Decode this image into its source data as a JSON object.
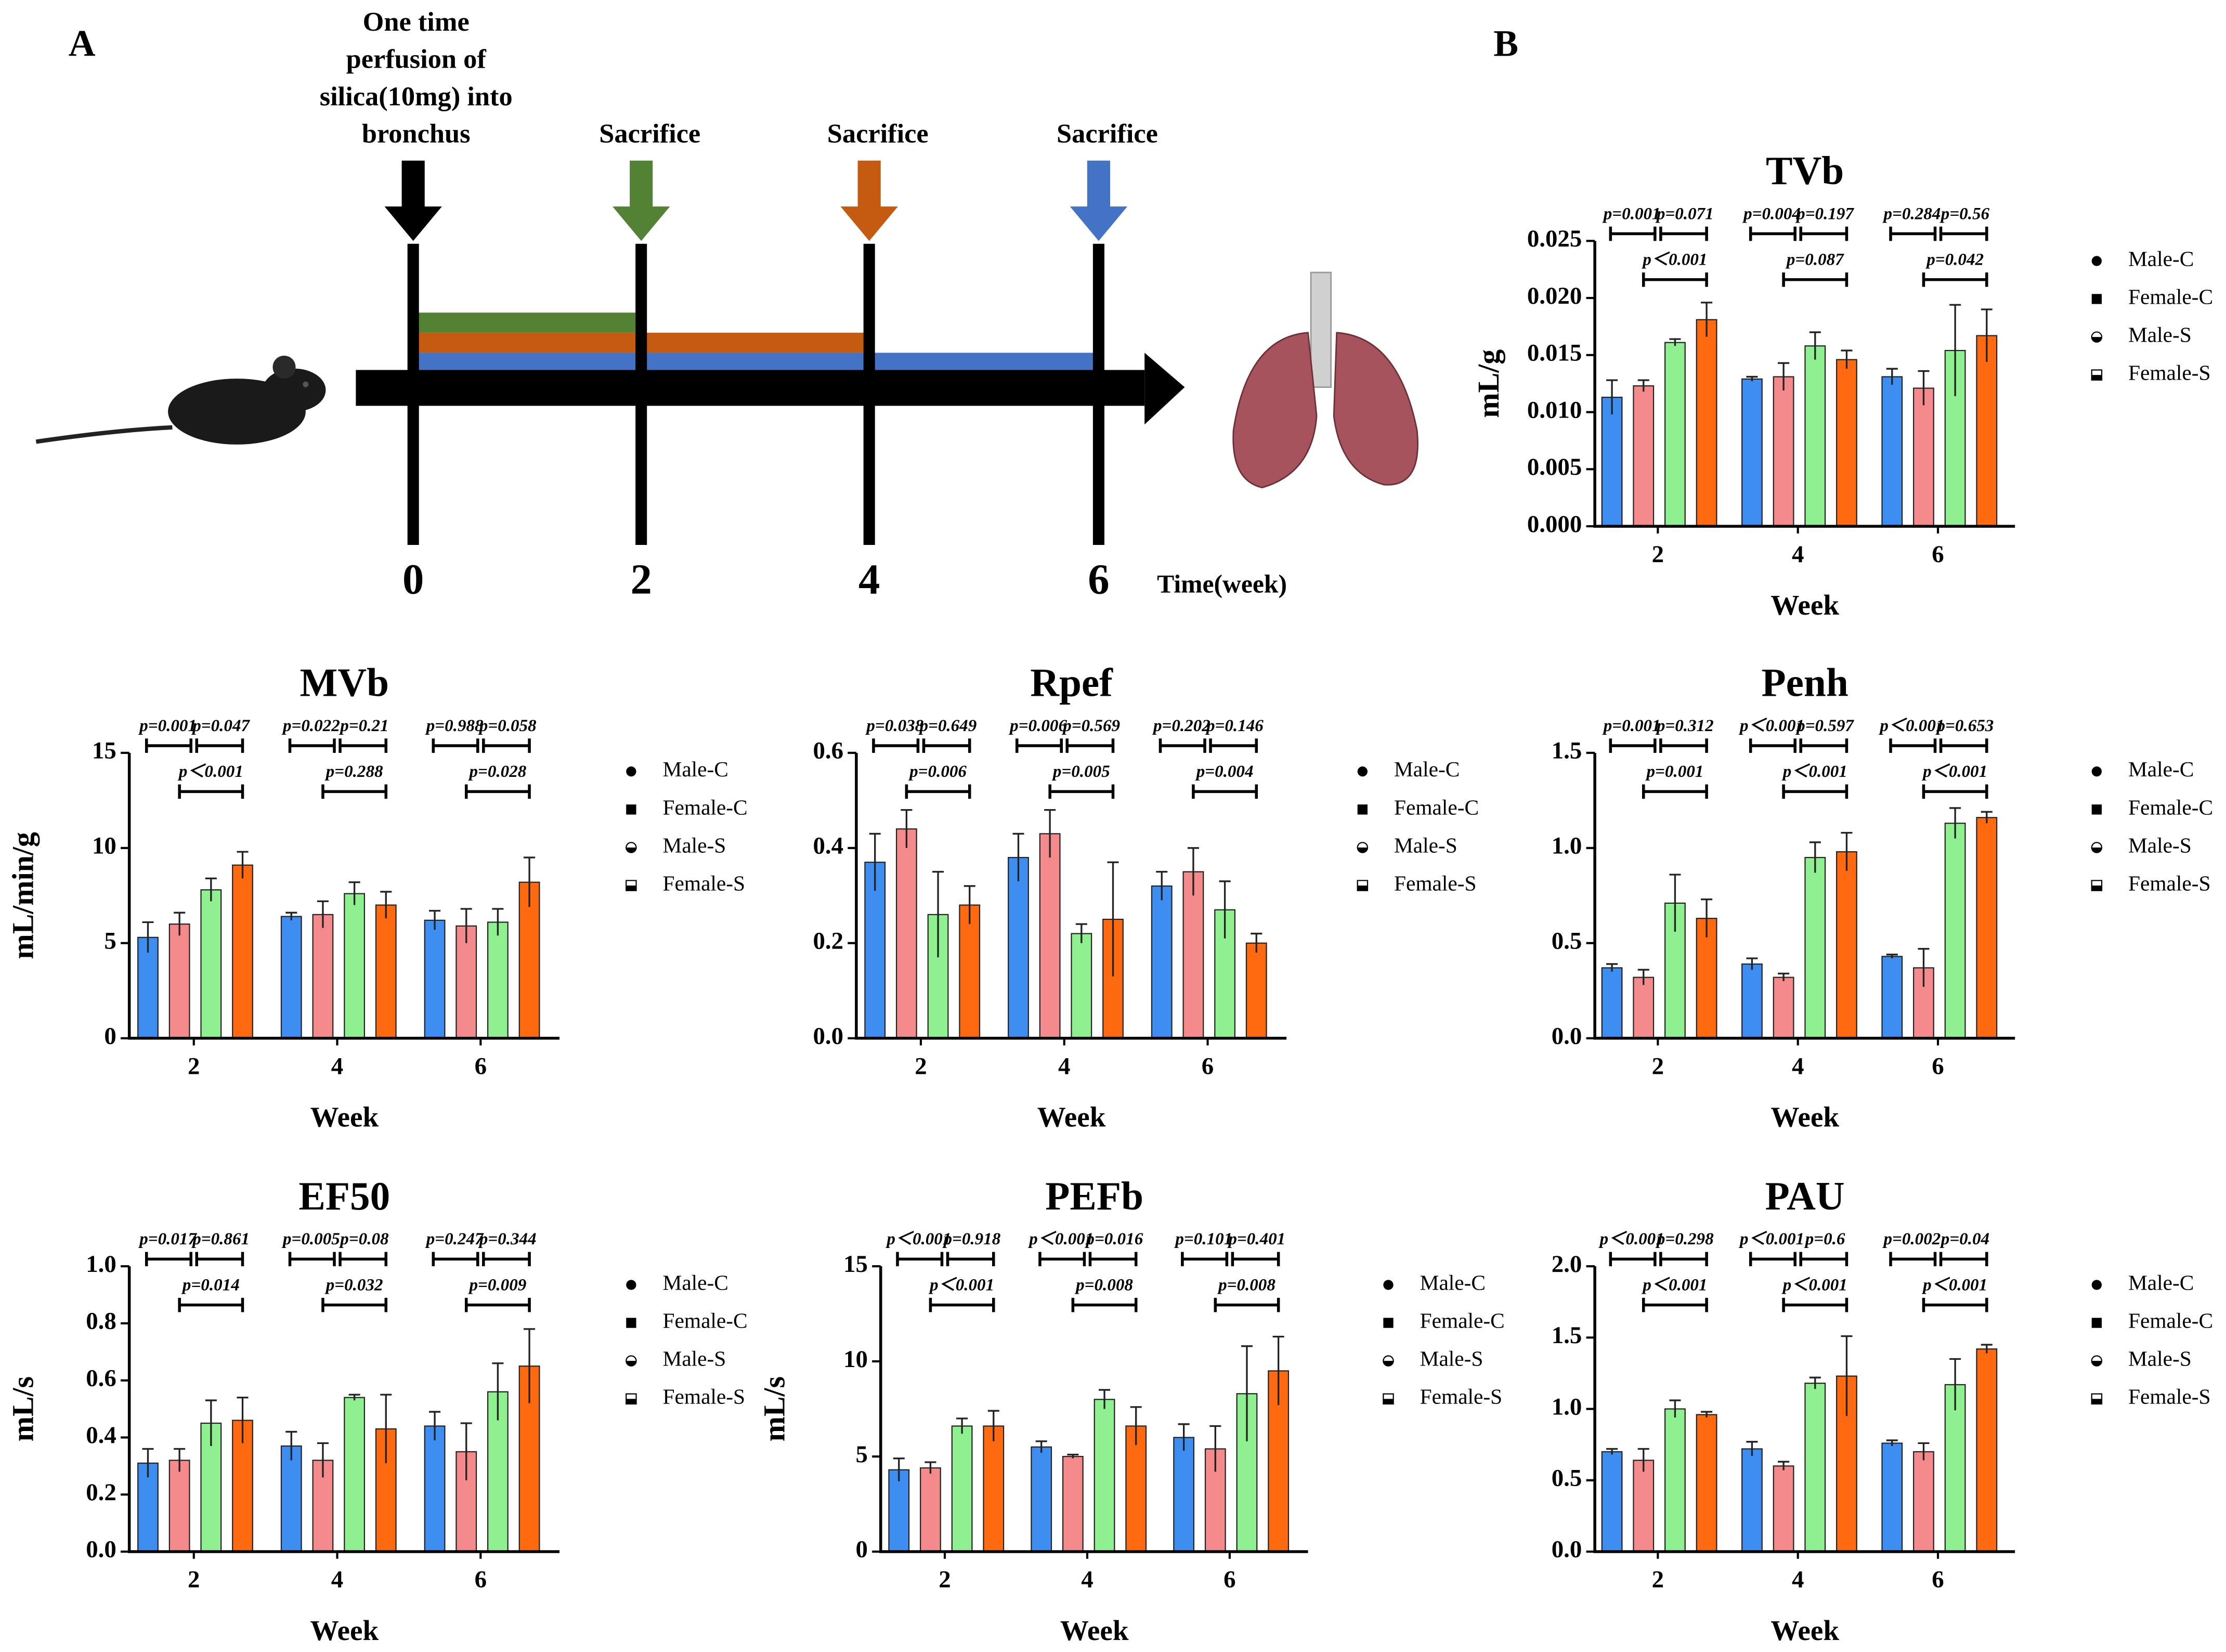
{
  "panel_labels": [
    "A",
    "B"
  ],
  "timeline": {
    "label_lines": [
      "One time",
      "perfusion of",
      "silica(10mg) into",
      "bronchus"
    ],
    "events": [
      "Sacrifice",
      "Sacrifice",
      "Sacrifice"
    ],
    "weeks": [
      "0",
      "2",
      "4",
      "6"
    ],
    "axis_label": "Time(week)"
  },
  "chart_data": [
    {
      "type": "bar",
      "title": "TVb",
      "ylabel": "mL/g",
      "xlabel": "Week",
      "categories": [
        "2",
        "4",
        "6"
      ],
      "ylim": [
        0,
        0.025
      ],
      "yticks": [
        {
          "value": 0,
          "label": "0.000"
        },
        {
          "value": 0.005,
          "label": "0.005"
        },
        {
          "value": 0.01,
          "label": "0.010"
        },
        {
          "value": 0.015,
          "label": "0.015"
        },
        {
          "value": 0.02,
          "label": "0.020"
        },
        {
          "value": 0.025,
          "label": "0.025"
        }
      ],
      "series": [
        {
          "name": "Male-C",
          "color": "#3d8ef0",
          "values": [
            0.0113,
            0.0129,
            0.0131
          ],
          "errors": [
            0.0015,
            0.0002,
            0.0007
          ]
        },
        {
          "name": "Female-C",
          "color": "#f48a8c",
          "values": [
            0.0123,
            0.0131,
            0.0121
          ],
          "errors": [
            0.0005,
            0.0012,
            0.0015
          ]
        },
        {
          "name": "Male-S",
          "color": "#8ff08f",
          "values": [
            0.0161,
            0.0158,
            0.0154
          ],
          "errors": [
            0.0003,
            0.0012,
            0.004
          ]
        },
        {
          "name": "Female-S",
          "color": "#ff6a10",
          "values": [
            0.0181,
            0.0146,
            0.0167
          ],
          "errors": [
            0.0015,
            0.0008,
            0.0023
          ]
        }
      ],
      "annotations": [
        [
          "p=0.001",
          "p=0.071",
          "p＜0.001"
        ],
        [
          "p=0.004",
          "p=0.197",
          "p=0.087"
        ],
        [
          "p=0.284",
          "p=0.56",
          "p=0.042"
        ]
      ]
    },
    {
      "type": "bar",
      "title": "MVb",
      "ylabel": "mL/min/g",
      "xlabel": "Week",
      "categories": [
        "2",
        "4",
        "6"
      ],
      "ylim": [
        0,
        15
      ],
      "yticks": [
        0,
        5,
        10,
        15
      ],
      "series": [
        {
          "name": "Male-C",
          "color": "#3d8ef0",
          "values": [
            5.3,
            6.4,
            6.2
          ],
          "errors": [
            0.8,
            0.2,
            0.5
          ]
        },
        {
          "name": "Female-C",
          "color": "#f48a8c",
          "values": [
            6.0,
            6.5,
            5.9
          ],
          "errors": [
            0.6,
            0.7,
            0.9
          ]
        },
        {
          "name": "Male-S",
          "color": "#8ff08f",
          "values": [
            7.8,
            7.6,
            6.1
          ],
          "errors": [
            0.6,
            0.6,
            0.7
          ]
        },
        {
          "name": "Female-S",
          "color": "#ff6a10",
          "values": [
            9.1,
            7.0,
            8.2
          ],
          "errors": [
            0.7,
            0.7,
            1.3
          ]
        }
      ],
      "annotations": [
        [
          "p=0.001",
          "p=0.047",
          "p＜0.001"
        ],
        [
          "p=0.022",
          "p=0.21",
          "p=0.288"
        ],
        [
          "p=0.988",
          "p=0.058",
          "p=0.028"
        ]
      ]
    },
    {
      "type": "bar",
      "title": "Rpef",
      "xlabel": "Week",
      "categories": [
        "2",
        "4",
        "6"
      ],
      "ylim": [
        0,
        0.6
      ],
      "yticks": [
        {
          "value": 0,
          "label": "0.0"
        },
        0.2,
        0.4,
        0.6
      ],
      "series": [
        {
          "name": "Male-C",
          "color": "#3d8ef0",
          "values": [
            0.37,
            0.38,
            0.32
          ],
          "errors": [
            0.06,
            0.05,
            0.03
          ]
        },
        {
          "name": "Female-C",
          "color": "#f48a8c",
          "values": [
            0.44,
            0.43,
            0.35
          ],
          "errors": [
            0.04,
            0.05,
            0.05
          ]
        },
        {
          "name": "Male-S",
          "color": "#8ff08f",
          "values": [
            0.26,
            0.22,
            0.27
          ],
          "errors": [
            0.09,
            0.02,
            0.06
          ]
        },
        {
          "name": "Female-S",
          "color": "#ff6a10",
          "values": [
            0.28,
            0.25,
            0.2
          ],
          "errors": [
            0.04,
            0.12,
            0.02
          ]
        }
      ],
      "annotations": [
        [
          "p=0.038",
          "p=0.649",
          "p=0.006"
        ],
        [
          "p=0.006",
          "p=0.569",
          "p=0.005"
        ],
        [
          "p=0.202",
          "p=0.146",
          "p=0.004"
        ]
      ]
    },
    {
      "type": "bar",
      "title": "Penh",
      "xlabel": "Week",
      "categories": [
        "2",
        "4",
        "6"
      ],
      "ylim": [
        0,
        1.5
      ],
      "yticks": [
        {
          "value": 0,
          "label": "0.0"
        },
        0.5,
        {
          "value": 1,
          "label": "1.0"
        },
        1.5
      ],
      "series": [
        {
          "name": "Male-C",
          "color": "#3d8ef0",
          "values": [
            0.37,
            0.39,
            0.43
          ],
          "errors": [
            0.02,
            0.03,
            0.01
          ]
        },
        {
          "name": "Female-C",
          "color": "#f48a8c",
          "values": [
            0.32,
            0.32,
            0.37
          ],
          "errors": [
            0.04,
            0.02,
            0.1
          ]
        },
        {
          "name": "Male-S",
          "color": "#8ff08f",
          "values": [
            0.71,
            0.95,
            1.13
          ],
          "errors": [
            0.15,
            0.08,
            0.08
          ]
        },
        {
          "name": "Female-S",
          "color": "#ff6a10",
          "values": [
            0.63,
            0.98,
            1.16
          ],
          "errors": [
            0.1,
            0.1,
            0.03
          ]
        }
      ],
      "annotations": [
        [
          "p=0.001",
          "p=0.312",
          "p=0.001"
        ],
        [
          "p＜0.001",
          "p=0.597",
          "p＜0.001"
        ],
        [
          "p＜0.001",
          "p=0.653",
          "p＜0.001"
        ]
      ]
    },
    {
      "type": "bar",
      "title": "EF50",
      "ylabel": "mL/s",
      "xlabel": "Week",
      "categories": [
        "2",
        "4",
        "6"
      ],
      "ylim": [
        0,
        1
      ],
      "yticks": [
        {
          "value": 0,
          "label": "0.0"
        },
        0.2,
        0.4,
        0.6,
        0.8,
        {
          "value": 1,
          "label": "1.0"
        }
      ],
      "series": [
        {
          "name": "Male-C",
          "color": "#3d8ef0",
          "values": [
            0.31,
            0.37,
            0.44
          ],
          "errors": [
            0.05,
            0.05,
            0.05
          ]
        },
        {
          "name": "Female-C",
          "color": "#f48a8c",
          "values": [
            0.32,
            0.32,
            0.35
          ],
          "errors": [
            0.04,
            0.06,
            0.1
          ]
        },
        {
          "name": "Male-S",
          "color": "#8ff08f",
          "values": [
            0.45,
            0.54,
            0.56
          ],
          "errors": [
            0.08,
            0.01,
            0.1
          ]
        },
        {
          "name": "Female-S",
          "color": "#ff6a10",
          "values": [
            0.46,
            0.43,
            0.65
          ],
          "errors": [
            0.08,
            0.12,
            0.13
          ]
        }
      ],
      "annotations": [
        [
          "p=0.017",
          "p=0.861",
          "p=0.014"
        ],
        [
          "p=0.005",
          "p=0.08",
          "p=0.032"
        ],
        [
          "p=0.247",
          "p=0.344",
          "p=0.009"
        ]
      ]
    },
    {
      "type": "bar",
      "title": "PEFb",
      "ylabel": "mL/s",
      "xlabel": "Week",
      "categories": [
        "2",
        "4",
        "6"
      ],
      "ylim": [
        0,
        15
      ],
      "yticks": [
        0,
        5,
        10,
        15
      ],
      "series": [
        {
          "name": "Male-C",
          "color": "#3d8ef0",
          "values": [
            4.3,
            5.5,
            6.0
          ],
          "errors": [
            0.6,
            0.3,
            0.7
          ]
        },
        {
          "name": "Female-C",
          "color": "#f48a8c",
          "values": [
            4.4,
            5.0,
            5.4
          ],
          "errors": [
            0.3,
            0.1,
            1.2
          ]
        },
        {
          "name": "Male-S",
          "color": "#8ff08f",
          "values": [
            6.6,
            8.0,
            8.3
          ],
          "errors": [
            0.4,
            0.5,
            2.5
          ]
        },
        {
          "name": "Female-S",
          "color": "#ff6a10",
          "values": [
            6.6,
            6.6,
            9.5
          ],
          "errors": [
            0.8,
            1.0,
            1.8
          ]
        }
      ],
      "annotations": [
        [
          "p＜0.001",
          "p=0.918",
          "p＜0.001"
        ],
        [
          "p＜0.001",
          "p=0.016",
          "p=0.008"
        ],
        [
          "p=0.101",
          "p=0.401",
          "p=0.008"
        ]
      ]
    },
    {
      "type": "bar",
      "title": "PAU",
      "xlabel": "Week",
      "categories": [
        "2",
        "4",
        "6"
      ],
      "ylim": [
        0,
        2
      ],
      "yticks": [
        {
          "value": 0,
          "label": "0.0"
        },
        0.5,
        {
          "value": 1,
          "label": "1.0"
        },
        1.5,
        {
          "value": 2,
          "label": "2.0"
        }
      ],
      "series": [
        {
          "name": "Male-C",
          "color": "#3d8ef0",
          "values": [
            0.7,
            0.72,
            0.76
          ],
          "errors": [
            0.02,
            0.05,
            0.02
          ]
        },
        {
          "name": "Female-C",
          "color": "#f48a8c",
          "values": [
            0.64,
            0.6,
            0.7
          ],
          "errors": [
            0.08,
            0.03,
            0.06
          ]
        },
        {
          "name": "Male-S",
          "color": "#8ff08f",
          "values": [
            1.0,
            1.18,
            1.17
          ],
          "errors": [
            0.06,
            0.04,
            0.18
          ]
        },
        {
          "name": "Female-S",
          "color": "#ff6a10",
          "values": [
            0.96,
            1.23,
            1.42
          ],
          "errors": [
            0.02,
            0.28,
            0.03
          ]
        }
      ],
      "annotations": [
        [
          "p＜0.001",
          "p=0.298",
          "p＜0.001"
        ],
        [
          "p＜0.001",
          "p=0.6",
          "p＜0.001"
        ],
        [
          "p=0.002",
          "p=0.04",
          "p＜0.001"
        ]
      ]
    }
  ]
}
